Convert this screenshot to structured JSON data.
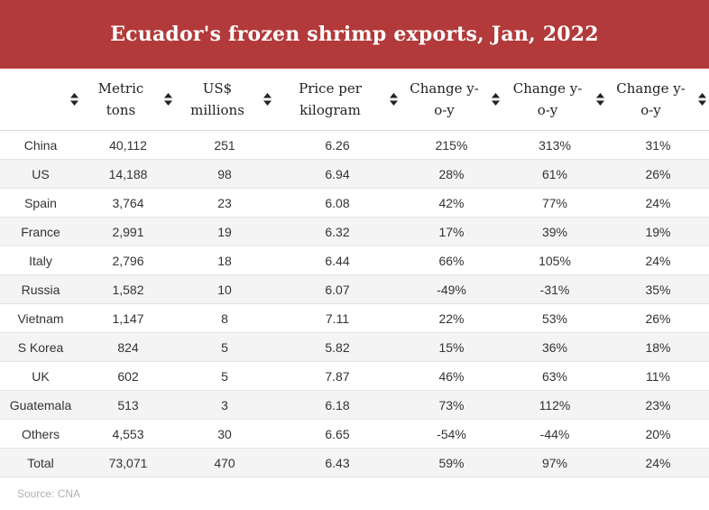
{
  "title": "Ecuador's frozen shrimp exports, Jan, 2022",
  "source": "Source: CNA",
  "chart_data": {
    "type": "table",
    "title": "Ecuador's frozen shrimp exports, Jan, 2022",
    "columns": [
      "",
      "Metric tons",
      "US$ millions",
      "Price per kilogram",
      "Change y-o-y",
      "Change y-o-y",
      "Change y-o-y"
    ],
    "header_lines": [
      [
        ""
      ],
      [
        "Metric",
        "tons"
      ],
      [
        "US$",
        "millions"
      ],
      [
        "Price per",
        "kilogram"
      ],
      [
        "Change y-",
        "o-y"
      ],
      [
        "Change y-",
        "o-y"
      ],
      [
        "Change y-",
        "o-y"
      ]
    ],
    "rows": [
      [
        "China",
        "40,112",
        "251",
        "6.26",
        "215%",
        "313%",
        "31%"
      ],
      [
        "US",
        "14,188",
        "98",
        "6.94",
        "28%",
        "61%",
        "26%"
      ],
      [
        "Spain",
        "3,764",
        "23",
        "6.08",
        "42%",
        "77%",
        "24%"
      ],
      [
        "France",
        "2,991",
        "19",
        "6.32",
        "17%",
        "39%",
        "19%"
      ],
      [
        "Italy",
        "2,796",
        "18",
        "6.44",
        "66%",
        "105%",
        "24%"
      ],
      [
        "Russia",
        "1,582",
        "10",
        "6.07",
        "-49%",
        "-31%",
        "35%"
      ],
      [
        "Vietnam",
        "1,147",
        "8",
        "7.11",
        "22%",
        "53%",
        "26%"
      ],
      [
        "S Korea",
        "824",
        "5",
        "5.82",
        "15%",
        "36%",
        "18%"
      ],
      [
        "UK",
        "602",
        "5",
        "7.87",
        "46%",
        "63%",
        "11%"
      ],
      [
        "Guatemala",
        "513",
        "3",
        "6.18",
        "73%",
        "112%",
        "23%"
      ],
      [
        "Others",
        "4,553",
        "30",
        "6.65",
        "-54%",
        "-44%",
        "20%"
      ],
      [
        "Total",
        "73,071",
        "470",
        "6.43",
        "59%",
        "97%",
        "24%"
      ]
    ]
  },
  "colors": {
    "title_bar": "#b23a3a",
    "stripe": "#f4f4f4",
    "source_text": "#b0b0b0"
  },
  "icons": {
    "sort": "sort-arrows-icon"
  }
}
